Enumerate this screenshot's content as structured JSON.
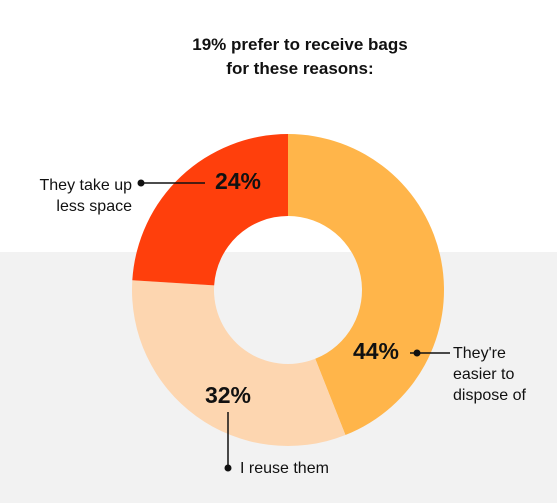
{
  "chart_data": {
    "type": "donut",
    "title": [
      "19% prefer to receive bags",
      "for these reasons:"
    ],
    "categories": [
      "They're easier to dispose of",
      "I reuse them",
      "They take up less space"
    ],
    "values": [
      44,
      32,
      24
    ],
    "value_labels": [
      "44%",
      "32%",
      "24%"
    ],
    "colors": [
      "#ffb54a",
      "#fdd6b0",
      "#ff3f0c"
    ]
  }
}
